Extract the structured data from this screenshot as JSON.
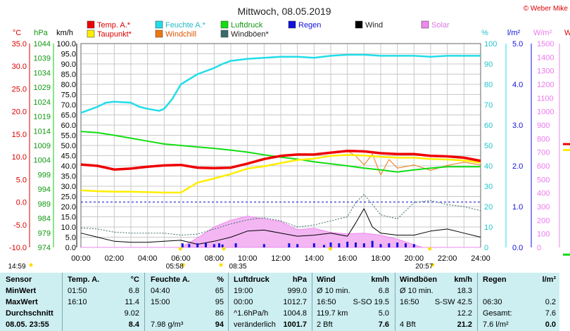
{
  "copyright": "© Weber Mike",
  "chart_data": {
    "type": "line",
    "title": "Mittwoch, 08.05.2019",
    "axis_units": {
      "temp": "°C",
      "pressure": "hPa",
      "speed": "km/h",
      "humidity": "%",
      "rain": "l/m²",
      "solar": "W/m²",
      "extra": "W"
    },
    "temp_ticks": [
      "35.0",
      "30.0",
      "25.0",
      "20.0",
      "15.0",
      "10.0",
      "5.0",
      "0.0",
      "-5.0",
      "-10.0"
    ],
    "pressure_ticks": [
      "1044",
      "1039",
      "1034",
      "1029",
      "1024",
      "1019",
      "1014",
      "1009",
      "1004",
      "999",
      "994",
      "989",
      "984",
      "979",
      "974"
    ],
    "speed_ticks": [
      "100.0",
      "95.0",
      "90.0",
      "85.0",
      "80.0",
      "75.0",
      "70.0",
      "65.0",
      "60.0",
      "55.0",
      "50.0",
      "45.0",
      "40.0",
      "35.0",
      "30.0",
      "25.0",
      "20.0",
      "15.0",
      "10.0",
      "5.0",
      "0.0"
    ],
    "humidity_ticks": [
      "100",
      "90",
      "80",
      "70",
      "60",
      "50",
      "40",
      "30",
      "20",
      "10",
      "0"
    ],
    "rain_ticks": [
      "5.0",
      "4.0",
      "3.0",
      "2.0",
      "1.0",
      "0.0"
    ],
    "solar_ticks": [
      "1500",
      "1400",
      "1300",
      "1200",
      "1100",
      "1000",
      "900",
      "800",
      "700",
      "600",
      "500",
      "400",
      "300",
      "200",
      "100",
      "0"
    ],
    "x_ticks": [
      "00:00",
      "02:00",
      "04:00",
      "06:00",
      "08:00",
      "10:00",
      "12:00",
      "14:00",
      "16:00",
      "18:00",
      "20:00",
      "22:00",
      "24:00"
    ],
    "x_range_hours": [
      0,
      24
    ],
    "legend": [
      {
        "name": "Temp. A.*",
        "color": "#ee0000"
      },
      {
        "name": "Feuchte A.*",
        "color": "#22dde8"
      },
      {
        "name": "Luftdruck",
        "color": "#11dd11"
      },
      {
        "name": "Regen",
        "color": "#1111dd"
      },
      {
        "name": "Wind",
        "color": "#000000"
      },
      {
        "name": "Solar",
        "color": "#ee88ee"
      },
      {
        "name": "Taupunkt*",
        "color": "#ffee00"
      },
      {
        "name": "Windchill",
        "color": "#ee7711"
      },
      {
        "name": "Windböen*",
        "color": "#3a6a6a"
      }
    ],
    "series": [
      {
        "name": "Temp. A.*",
        "axis": "temp",
        "x": [
          0,
          1,
          2,
          3,
          4,
          5,
          6,
          7,
          8,
          9,
          10,
          11,
          12,
          13,
          14,
          15,
          16,
          17,
          18,
          19,
          20,
          21,
          22,
          23,
          24
        ],
        "values": [
          8.3,
          8,
          7.2,
          7.4,
          7.8,
          8.1,
          8.2,
          7.6,
          7.5,
          7.6,
          8.5,
          9.5,
          10.2,
          10.5,
          10.5,
          10.9,
          11.3,
          11.2,
          10.8,
          10.6,
          10.6,
          10.2,
          10.1,
          9.8,
          9.1
        ]
      },
      {
        "name": "Feuchte A.*",
        "axis": "humidity",
        "x": [
          0,
          1,
          1.5,
          2,
          3,
          3.5,
          4,
          4.7,
          5,
          5.5,
          6,
          7,
          8,
          8.5,
          9,
          10,
          11,
          12,
          13,
          14,
          15,
          16,
          17,
          18,
          19,
          20,
          21,
          22,
          23,
          24
        ],
        "values": [
          66,
          69,
          71,
          71.5,
          71,
          69,
          68,
          67,
          68,
          73,
          80,
          85,
          88,
          90,
          91.5,
          92.5,
          93,
          93.5,
          93.5,
          93,
          94,
          94.5,
          94.5,
          94,
          94,
          94,
          93.5,
          94,
          94,
          94
        ]
      },
      {
        "name": "Luftdruck",
        "axis": "pressure",
        "x": [
          0,
          1,
          2,
          3,
          4,
          5,
          6,
          7,
          8,
          9,
          10,
          11,
          12,
          13,
          14,
          15,
          16,
          17,
          18,
          19,
          20,
          21,
          22,
          23,
          24
        ],
        "values": [
          1013.8,
          1013.4,
          1012.5,
          1011.5,
          1010.5,
          1009.5,
          1009,
          1008.5,
          1008,
          1007.4,
          1006.7,
          1005.8,
          1005,
          1004.3,
          1003.4,
          1002.7,
          1002,
          1001.2,
          1000.6,
          999.9,
          1000.6,
          1001.2,
          1001.7,
          1001.7,
          1001.7
        ]
      },
      {
        "name": "Taupunkt*",
        "axis": "temp",
        "x": [
          0,
          1,
          2,
          3,
          4,
          5,
          6,
          7,
          8,
          9,
          10,
          11,
          12,
          13,
          14,
          15,
          16,
          17,
          18,
          19,
          20,
          21,
          22,
          23,
          24
        ],
        "values": [
          2.6,
          2.4,
          2.3,
          2.3,
          2.2,
          2.1,
          2.1,
          4.3,
          5.2,
          6.2,
          7.4,
          7.9,
          8.6,
          9.3,
          9.6,
          10.2,
          10.4,
          10.3,
          10,
          9.8,
          9.8,
          9.5,
          9.4,
          9.2,
          8.7
        ]
      },
      {
        "name": "Wind",
        "axis": "speed",
        "x": [
          0,
          1,
          2,
          3,
          4,
          5,
          6,
          7,
          8,
          9,
          10,
          11,
          12,
          13,
          14,
          15,
          16,
          16.5,
          17,
          17.5,
          18,
          19,
          20,
          21,
          22,
          23,
          24
        ],
        "values": [
          7,
          5,
          3,
          2.5,
          2.5,
          3,
          3.5,
          1.5,
          3,
          5,
          8,
          8.5,
          7,
          5.5,
          6,
          7,
          5.5,
          12,
          19,
          10,
          7,
          6,
          6,
          8,
          9,
          7,
          5
        ]
      },
      {
        "name": "Windböen*",
        "axis": "speed",
        "x": [
          0,
          1,
          2,
          3,
          4,
          5,
          6,
          7,
          8,
          9,
          10,
          11,
          12,
          13,
          14,
          15,
          16,
          16.5,
          17,
          17.5,
          18,
          19,
          20,
          21,
          22,
          23,
          24
        ],
        "values": [
          9.5,
          9,
          7.5,
          7,
          7,
          7,
          6,
          6.5,
          9,
          11.5,
          13.5,
          14.5,
          13,
          10,
          11,
          13,
          15,
          22,
          26,
          21,
          16,
          14,
          22,
          23,
          21,
          20,
          18
        ]
      },
      {
        "name": "Windchill",
        "axis": "temp",
        "x": [
          14,
          15,
          16,
          16.5,
          17,
          17.5,
          18,
          18.5,
          19,
          20,
          21,
          22,
          23,
          24
        ],
        "values": [
          10.6,
          10.9,
          11.3,
          10.2,
          8.2,
          10.6,
          6,
          9.4,
          7.5,
          8.2,
          7,
          8.1,
          8.8,
          8.2
        ]
      },
      {
        "name": "Solar",
        "axis": "solar",
        "x": [
          0,
          6,
          7,
          8,
          9,
          10,
          11,
          12,
          13,
          14,
          15,
          16,
          17,
          18,
          19,
          20,
          20.5,
          24
        ],
        "values": [
          0,
          0,
          70,
          150,
          200,
          230,
          210,
          190,
          130,
          140,
          110,
          100,
          105,
          90,
          60,
          20,
          0,
          0
        ]
      },
      {
        "name": "Regen",
        "axis": "rain",
        "x": [
          6.1,
          6.5,
          7,
          7.5,
          8,
          8.3,
          8.5,
          9.3,
          11,
          12.5,
          13,
          14,
          14.6,
          15,
          15.5,
          16,
          16.5,
          17,
          17.5,
          18,
          18.5,
          19,
          19.5,
          20
        ],
        "values": [
          0.1,
          0.08,
          0.1,
          0.12,
          0.08,
          0.1,
          0.07,
          0.1,
          0.08,
          0.1,
          0.08,
          0.1,
          0.06,
          0.12,
          0.1,
          0.14,
          0.12,
          0.1,
          0.16,
          0.08,
          0.1,
          0.12,
          0.1,
          0.08
        ]
      }
    ],
    "frost_line": {
      "axis": "temp",
      "value": 0
    },
    "events": [
      {
        "label": "14:59",
        "hour": 14.98
      },
      {
        "label": "05:58",
        "hour": 5.97
      },
      {
        "label": "08:35",
        "hour": 8.58
      },
      {
        "label": "20:57",
        "hour": 20.95
      }
    ],
    "right_markers": [
      {
        "axis": "temp",
        "value": 12.8,
        "color": "#ee0000"
      },
      {
        "axis": "temp",
        "value": 11.5,
        "color": "#ffee00"
      },
      {
        "axis": "temp",
        "value": -11.6,
        "color": "#11dd11"
      }
    ]
  },
  "table": {
    "header": [
      "Sensor",
      "Temp. A.",
      "°C",
      "Feuchte A.",
      "%",
      "Luftdruck",
      "hPa",
      "Wind",
      "km/h",
      "Windböen",
      "km/h",
      "Regen",
      "l/m²"
    ],
    "rows": [
      {
        "label": "MinWert",
        "cells": [
          "01:50",
          "6.8",
          "04:40",
          "65",
          "19:00",
          "999.0",
          "Ø 10 min.",
          "6.8",
          "Ø 10 min.",
          "18.3",
          "",
          ""
        ]
      },
      {
        "label": "MaxWert",
        "cells": [
          "16:10",
          "11.4",
          "15:00",
          "95",
          "00:00",
          "1012.7",
          "16:50",
          "S-SO 19.5",
          "16:50",
          "S-SW 42.5",
          "06:30",
          "0.2"
        ]
      },
      {
        "label": "Durchschnitt",
        "cells": [
          "",
          "9.02",
          "",
          "86",
          "^1.6hPa/h",
          "1004.8",
          "119.7 km",
          "5.0",
          "",
          "12.2",
          "Gesamt:",
          "7.6"
        ]
      },
      {
        "label": "08.05. 23:55",
        "cells": [
          "",
          "8.4",
          "7.98 g/m³",
          "94",
          "veränderlich",
          "1001.7",
          "2 Bft",
          "7.6",
          "4 Bft",
          "21.2",
          "7.6 l/m²",
          "0.0"
        ]
      }
    ]
  }
}
